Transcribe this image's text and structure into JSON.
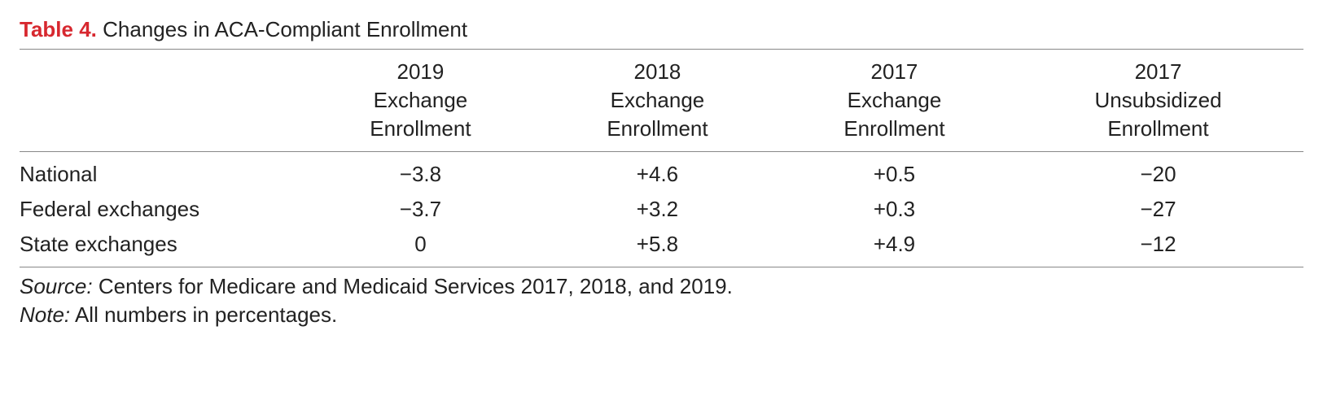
{
  "caption": {
    "label": "Table 4.",
    "title": "Changes in ACA-Compliant Enrollment"
  },
  "columns": [
    {
      "l1": "2019",
      "l2": "Exchange",
      "l3": "Enrollment"
    },
    {
      "l1": "2018",
      "l2": "Exchange",
      "l3": "Enrollment"
    },
    {
      "l1": "2017",
      "l2": "Exchange",
      "l3": "Enrollment"
    },
    {
      "l1": "2017",
      "l2": "Unsubsidized",
      "l3": "Enrollment"
    }
  ],
  "rows": [
    {
      "name": "National",
      "values": [
        "−3.8",
        "+4.6",
        "+0.5",
        "−20"
      ]
    },
    {
      "name": "Federal exchanges",
      "values": [
        "−3.7",
        "+3.2",
        "+0.3",
        "−27"
      ]
    },
    {
      "name": "State exchanges",
      "values": [
        "0",
        "+5.8",
        "+4.9",
        "−12"
      ]
    }
  ],
  "source": {
    "label": "Source:",
    "text": "Centers for Medicare and Medicaid Services 2017, 2018, and 2019."
  },
  "note": {
    "label": "Note:",
    "text": "All numbers in percentages."
  },
  "style": {
    "title_color": "#d7282f",
    "text_color": "#222222",
    "rule_color": "#888888",
    "font_size_pt": 20
  }
}
